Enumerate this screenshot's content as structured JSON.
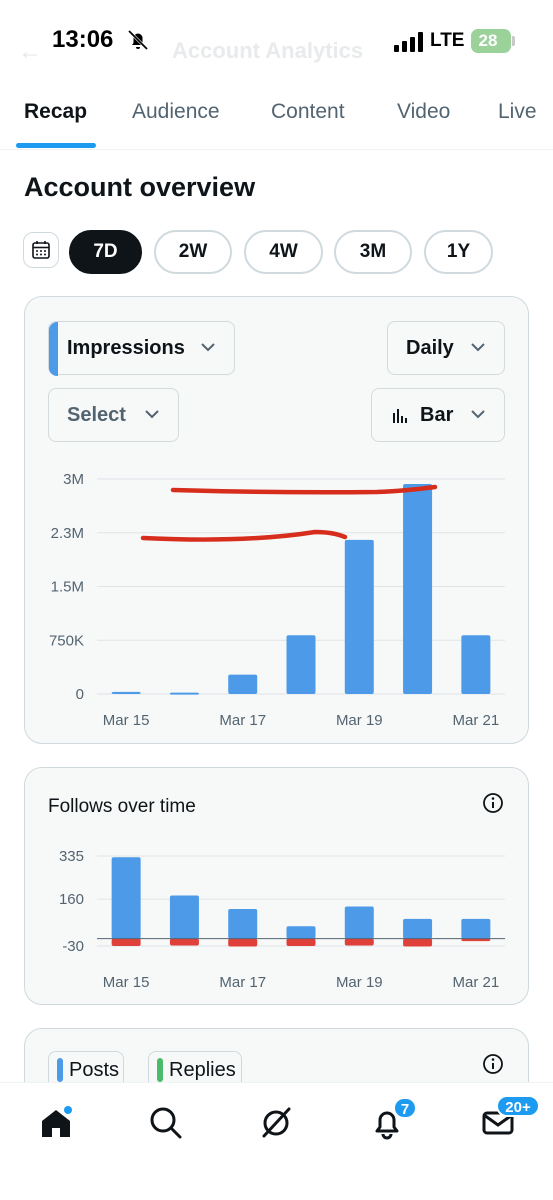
{
  "status_bar": {
    "time": "13:06",
    "network": "LTE",
    "battery": "28",
    "faded_title": "Account Analytics"
  },
  "tabs": [
    {
      "label": "Recap",
      "active": true
    },
    {
      "label": "Audience",
      "active": false
    },
    {
      "label": "Content",
      "active": false
    },
    {
      "label": "Video",
      "active": false
    },
    {
      "label": "Live",
      "active": false
    }
  ],
  "section_title": "Account overview",
  "ranges": [
    {
      "label": "7D",
      "active": true
    },
    {
      "label": "2W",
      "active": false
    },
    {
      "label": "4W",
      "active": false
    },
    {
      "label": "3M",
      "active": false
    },
    {
      "label": "1Y",
      "active": false
    }
  ],
  "impressions_card": {
    "metric": "Impressions",
    "interval": "Daily",
    "compare": "Select",
    "chart_style": "Bar"
  },
  "follows_card": {
    "title": "Follows over time"
  },
  "posts_card": {
    "legend": [
      "Posts",
      "Replies"
    ]
  },
  "nav": {
    "notifications_badge": "7",
    "messages_badge": "20+"
  },
  "colors": {
    "accent": "#1d9bf0",
    "bar": "#4c9ae8",
    "negative": "#e0403a",
    "annotation": "#d62d1c",
    "replies": "#4cba6b"
  },
  "chart_data": [
    {
      "type": "bar",
      "title": "",
      "categories": [
        "Mar 15",
        "Mar 16",
        "Mar 17",
        "Mar 18",
        "Mar 19",
        "Mar 20",
        "Mar 21"
      ],
      "x_tick_labels": [
        "Mar 15",
        "Mar 17",
        "Mar 19",
        "Mar 21"
      ],
      "y_tick_labels": [
        "3M",
        "2.3M",
        "1.5M",
        "750K",
        "0"
      ],
      "y_ticks": [
        3000000,
        2250000,
        1500000,
        750000,
        0
      ],
      "ylim": [
        0,
        3000000
      ],
      "values": [
        30000,
        20000,
        270000,
        820000,
        2150000,
        2930000,
        820000
      ],
      "grid": true
    },
    {
      "type": "bar",
      "title": "Follows over time",
      "categories": [
        "Mar 15",
        "Mar 16",
        "Mar 17",
        "Mar 18",
        "Mar 19",
        "Mar 20",
        "Mar 21"
      ],
      "x_tick_labels": [
        "Mar 15",
        "Mar 17",
        "Mar 19",
        "Mar 21"
      ],
      "y_tick_labels": [
        "335",
        "160",
        "-30"
      ],
      "y_ticks": [
        335,
        160,
        -30
      ],
      "ylim": [
        -30,
        335
      ],
      "series": [
        {
          "values": [
            330,
            175,
            120,
            50,
            130,
            80,
            80
          ]
        },
        {
          "values": [
            -30,
            -28,
            -32,
            -30,
            -28,
            -32,
            -10
          ]
        }
      ],
      "grid": true
    }
  ]
}
